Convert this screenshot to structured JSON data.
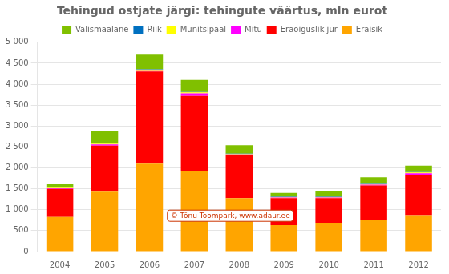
{
  "chart_data": {
    "type": "bar",
    "title": "Tehingud ostjate järgi: tehingute väärtus, mln eurot",
    "categories": [
      "2004",
      "2005",
      "2006",
      "2007",
      "2008",
      "2009",
      "2010",
      "2011",
      "2012"
    ],
    "series": [
      {
        "name": "Eraisik",
        "color": "#ffa500",
        "values": [
          830,
          1430,
          2100,
          1920,
          1280,
          630,
          690,
          760,
          870
        ]
      },
      {
        "name": "Eraõiguslik jur",
        "color": "#ff0000",
        "values": [
          670,
          1100,
          2200,
          1800,
          1020,
          650,
          590,
          820,
          950
        ]
      },
      {
        "name": "Mitu",
        "color": "#ff00ff",
        "values": [
          10,
          30,
          30,
          60,
          20,
          10,
          10,
          20,
          50
        ]
      },
      {
        "name": "Munitsipaal",
        "color": "#ffff00",
        "values": [
          15,
          20,
          20,
          25,
          10,
          10,
          10,
          15,
          20
        ]
      },
      {
        "name": "Riik",
        "color": "#0070c0",
        "values": [
          5,
          10,
          15,
          10,
          10,
          10,
          10,
          10,
          10
        ]
      },
      {
        "name": "Välismaalane",
        "color": "#80c000",
        "values": [
          80,
          300,
          340,
          285,
          200,
          90,
          130,
          150,
          155
        ]
      }
    ],
    "stacked": true,
    "ylim": [
      0,
      5000
    ],
    "yticks": [
      0,
      500,
      {
        "value": 1000,
        "label": "1 000"
      },
      {
        "value": 1500,
        "label": "1 500"
      },
      {
        "value": 2000,
        "label": "2 000"
      },
      {
        "value": 2500,
        "label": "2 500"
      },
      {
        "value": 3000,
        "label": "3 000"
      },
      {
        "value": 3500,
        "label": "3 500"
      },
      {
        "value": 4000,
        "label": "4 000"
      },
      {
        "value": 4500,
        "label": "4 500"
      },
      {
        "value": 5000,
        "label": "5 000"
      }
    ],
    "grid": true,
    "legend": "top",
    "annotations": [
      "© Tõnu Toompark, www.adaur.ee"
    ]
  }
}
